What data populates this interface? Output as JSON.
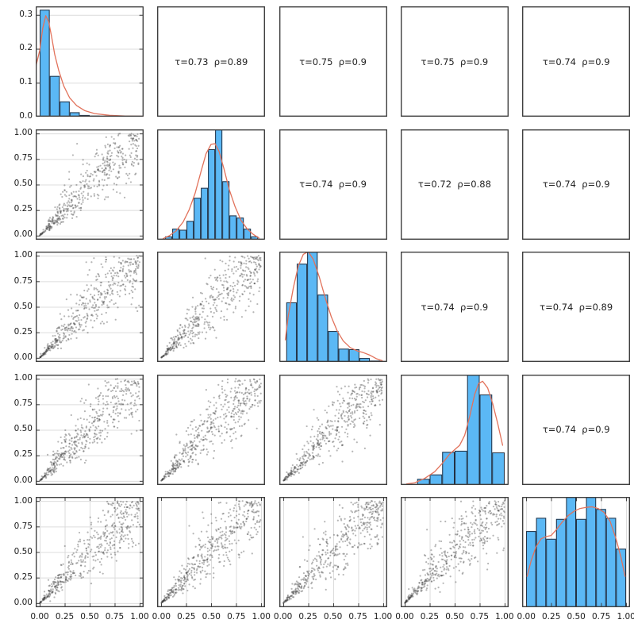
{
  "chart_data": {
    "type": "pairs-matrix",
    "n_vars": 5,
    "axis_range": [
      -0.04,
      1.04
    ],
    "x_ticks": [
      0,
      0.25,
      0.5,
      0.75,
      1
    ],
    "x_tick_labels": [
      "0.00",
      "0.25",
      "0.50",
      "0.75",
      "1.00"
    ],
    "y_ticks": [
      0,
      0.25,
      0.5,
      0.75,
      1
    ],
    "y_tick_labels": [
      "0.00",
      "0.25",
      "0.50",
      "0.75",
      "1.00"
    ],
    "row1_y_axis": {
      "max": 0.325,
      "ticks": [
        0,
        0.1,
        0.2,
        0.3
      ],
      "labels": [
        "0.0",
        "0.1",
        "0.2",
        "0.3"
      ]
    },
    "grid": {
      "left_column_horizontal": true,
      "bottom_row_vertical": true,
      "interior_cells": false
    },
    "colors": {
      "bar_fill": "#5BB8F5",
      "bar_stroke": "#233143",
      "kde_line": "#E2725B",
      "frame": "#3F3F3F",
      "grid_line": "#DCDCDC",
      "tick": "#3F3F3F",
      "label": "#1A1A1A",
      "point": "#3C3C3C"
    },
    "scatter": {
      "pattern": "lower-tail-dependent funnel from origin",
      "model": "clayton",
      "theta": 5.5,
      "n_points": 460,
      "base_seed": 42,
      "point_radius": 1.1,
      "point_alpha": 0.38
    },
    "histograms": [
      {
        "var": 1,
        "bin_start": 0.0,
        "bin_end": 1.0,
        "heights": [
          0.969,
          0.369,
          0.138,
          0.04,
          0.015,
          0.009,
          0.006,
          0.006,
          0.003,
          0.003
        ],
        "kde": [
          [
            -0.04,
            0.45
          ],
          [
            0,
            0.6
          ],
          [
            0.03,
            0.8
          ],
          [
            0.06,
            0.915
          ],
          [
            0.09,
            0.86
          ],
          [
            0.12,
            0.72
          ],
          [
            0.15,
            0.565
          ],
          [
            0.19,
            0.42
          ],
          [
            0.24,
            0.28
          ],
          [
            0.3,
            0.17
          ],
          [
            0.37,
            0.1
          ],
          [
            0.45,
            0.055
          ],
          [
            0.55,
            0.028
          ],
          [
            0.7,
            0.012
          ],
          [
            0.85,
            0.006
          ],
          [
            1.04,
            0.003
          ]
        ]
      },
      {
        "var": 2,
        "bin_start": 0.04,
        "bin_end": 0.97,
        "heights": [
          0.03,
          0.1,
          0.09,
          0.17,
          0.38,
          0.47,
          0.82,
          1.0,
          0.53,
          0.22,
          0.2,
          0.1,
          0.03
        ],
        "kde": [
          [
            0.02,
            0.01
          ],
          [
            0.08,
            0.035
          ],
          [
            0.15,
            0.08
          ],
          [
            0.22,
            0.16
          ],
          [
            0.28,
            0.27
          ],
          [
            0.34,
            0.42
          ],
          [
            0.4,
            0.62
          ],
          [
            0.45,
            0.78
          ],
          [
            0.5,
            0.865
          ],
          [
            0.54,
            0.87
          ],
          [
            0.58,
            0.8
          ],
          [
            0.63,
            0.64
          ],
          [
            0.68,
            0.46
          ],
          [
            0.74,
            0.3
          ],
          [
            0.8,
            0.175
          ],
          [
            0.86,
            0.1
          ],
          [
            0.92,
            0.05
          ],
          [
            0.98,
            0.015
          ]
        ]
      },
      {
        "var": 3,
        "bin_start": 0.03,
        "bin_end": 0.97,
        "heights": [
          0.54,
          0.89,
          1.0,
          0.61,
          0.28,
          0.12,
          0.115,
          0.035,
          0.012
        ],
        "kde": [
          [
            0.02,
            0.2
          ],
          [
            0.05,
            0.42
          ],
          [
            0.1,
            0.67
          ],
          [
            0.15,
            0.87
          ],
          [
            0.2,
            0.975
          ],
          [
            0.25,
            1.0
          ],
          [
            0.3,
            0.93
          ],
          [
            0.36,
            0.77
          ],
          [
            0.42,
            0.58
          ],
          [
            0.48,
            0.41
          ],
          [
            0.54,
            0.28
          ],
          [
            0.6,
            0.19
          ],
          [
            0.67,
            0.13
          ],
          [
            0.74,
            0.1
          ],
          [
            0.8,
            0.085
          ],
          [
            0.87,
            0.06
          ],
          [
            0.93,
            0.03
          ],
          [
            0.99,
            0.012
          ]
        ]
      },
      {
        "var": 4,
        "bin_start": 0.0,
        "bin_end": 1.0,
        "heights": [
          0.008,
          0.055,
          0.095,
          0.3,
          0.31,
          1.0,
          0.82,
          0.295
        ],
        "kde": [
          [
            0.02,
            0.01
          ],
          [
            0.1,
            0.02
          ],
          [
            0.2,
            0.06
          ],
          [
            0.3,
            0.12
          ],
          [
            0.38,
            0.2
          ],
          [
            0.45,
            0.28
          ],
          [
            0.5,
            0.32
          ],
          [
            0.55,
            0.36
          ],
          [
            0.6,
            0.45
          ],
          [
            0.65,
            0.62
          ],
          [
            0.7,
            0.82
          ],
          [
            0.74,
            0.92
          ],
          [
            0.78,
            0.94
          ],
          [
            0.83,
            0.88
          ],
          [
            0.88,
            0.74
          ],
          [
            0.93,
            0.56
          ],
          [
            0.98,
            0.36
          ]
        ]
      },
      {
        "var": 5,
        "bin_start": 0.0,
        "bin_end": 1.0,
        "heights": [
          0.69,
          0.81,
          0.62,
          0.8,
          1.0,
          0.8,
          1.0,
          0.89,
          0.81,
          0.53
        ],
        "kde": [
          [
            0.01,
            0.28
          ],
          [
            0.05,
            0.42
          ],
          [
            0.1,
            0.55
          ],
          [
            0.15,
            0.62
          ],
          [
            0.2,
            0.64
          ],
          [
            0.25,
            0.65
          ],
          [
            0.3,
            0.7
          ],
          [
            0.36,
            0.77
          ],
          [
            0.42,
            0.83
          ],
          [
            0.48,
            0.87
          ],
          [
            0.54,
            0.895
          ],
          [
            0.6,
            0.905
          ],
          [
            0.66,
            0.91
          ],
          [
            0.72,
            0.895
          ],
          [
            0.78,
            0.86
          ],
          [
            0.84,
            0.78
          ],
          [
            0.9,
            0.62
          ],
          [
            0.95,
            0.45
          ],
          [
            0.99,
            0.28
          ]
        ]
      }
    ],
    "correlations": [
      {
        "row": 1,
        "col": 2,
        "tau": 0.73,
        "rho": 0.89,
        "text": "τ=0.73  ρ=0.89"
      },
      {
        "row": 1,
        "col": 3,
        "tau": 0.75,
        "rho": 0.9,
        "text": "τ=0.75  ρ=0.9"
      },
      {
        "row": 1,
        "col": 4,
        "tau": 0.75,
        "rho": 0.9,
        "text": "τ=0.75  ρ=0.9"
      },
      {
        "row": 1,
        "col": 5,
        "tau": 0.74,
        "rho": 0.9,
        "text": "τ=0.74  ρ=0.9"
      },
      {
        "row": 2,
        "col": 3,
        "tau": 0.74,
        "rho": 0.9,
        "text": "τ=0.74  ρ=0.9"
      },
      {
        "row": 2,
        "col": 4,
        "tau": 0.72,
        "rho": 0.88,
        "text": "τ=0.72  ρ=0.88"
      },
      {
        "row": 2,
        "col": 5,
        "tau": 0.74,
        "rho": 0.9,
        "text": "τ=0.74  ρ=0.9"
      },
      {
        "row": 3,
        "col": 4,
        "tau": 0.74,
        "rho": 0.9,
        "text": "τ=0.74  ρ=0.9"
      },
      {
        "row": 3,
        "col": 5,
        "tau": 0.74,
        "rho": 0.89,
        "text": "τ=0.74  ρ=0.89"
      },
      {
        "row": 4,
        "col": 5,
        "tau": 0.74,
        "rho": 0.9,
        "text": "τ=0.74  ρ=0.9"
      }
    ]
  }
}
